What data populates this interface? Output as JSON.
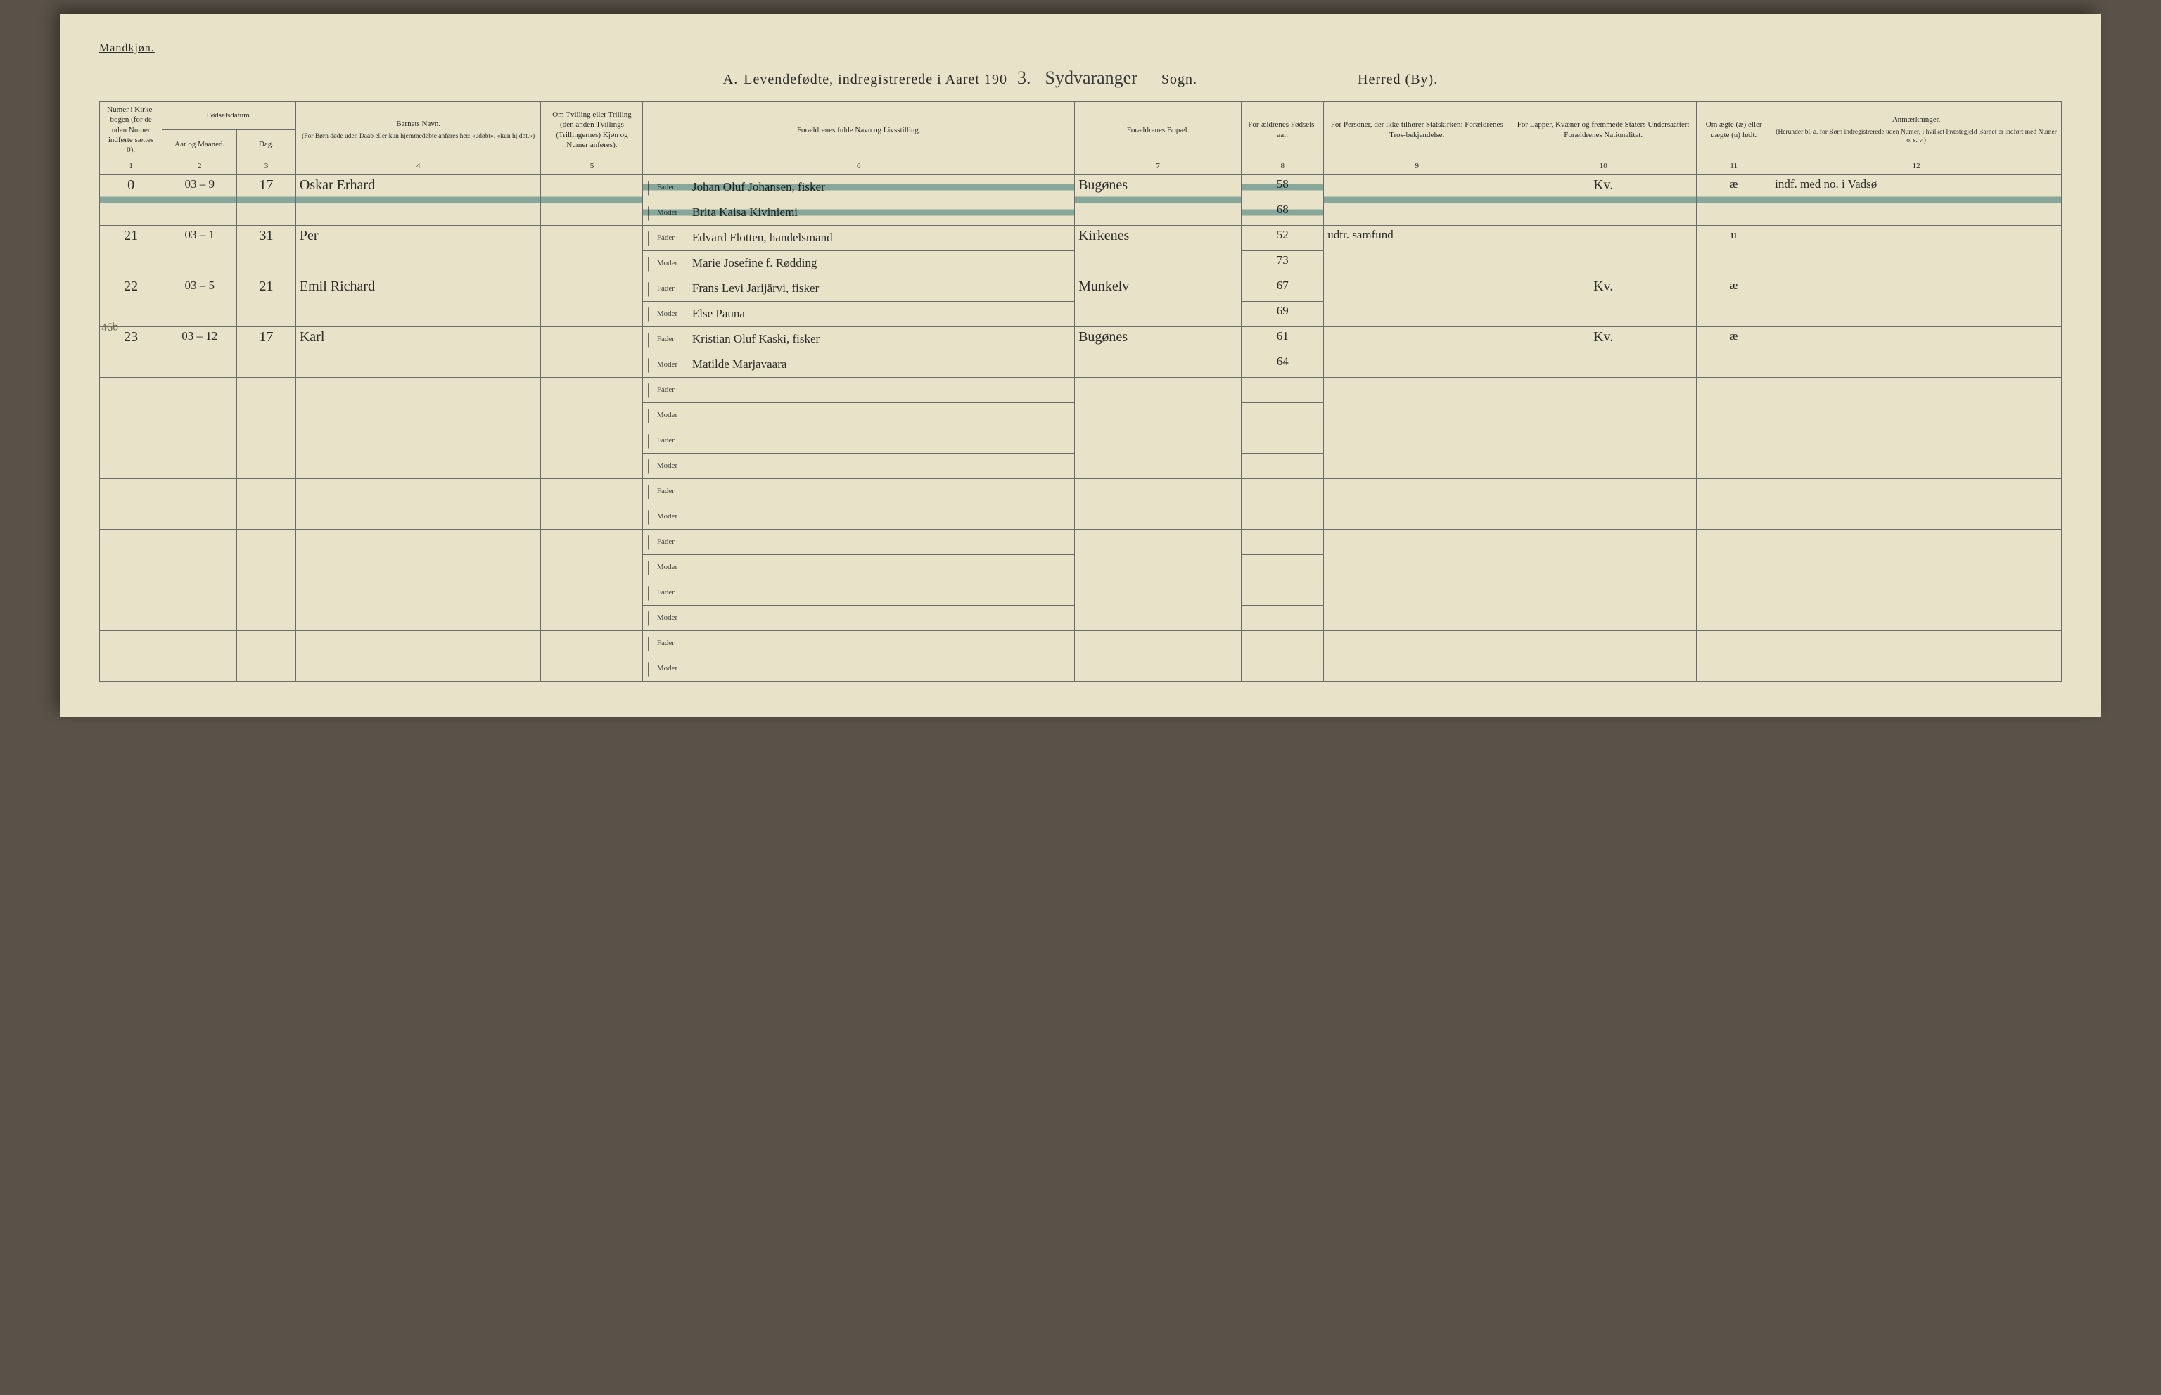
{
  "header": {
    "gender": "Mandkjøn.",
    "title_letter": "A.",
    "title_main": "Levendefødte, indregistrerede i Aaret 190",
    "year_suffix": "3.",
    "parish_hand": "Sydvaranger",
    "parish_label": "Sogn.",
    "district_label": "Herred (By)."
  },
  "columns": {
    "c1": "Numer i Kirke-bogen (for de uden Numer indførte sættes 0).",
    "c2_group": "Fødselsdatum.",
    "c2": "Aar og Maaned.",
    "c3": "Dag.",
    "c4": "Barnets Navn.",
    "c4_sub": "(For Børn døde uden Daab eller kun hjemmedøbte anføres her: «udøbt», «kun hj.dbt.»)",
    "c5": "Om Tvilling eller Trilling (den anden Tvillings (Trillingernes) Kjøn og Numer anføres).",
    "c6": "Forældrenes fulde Navn og Livsstilling.",
    "c7": "Forældrenes Bopæl.",
    "c8": "For-ældrenes Fødsels-aar.",
    "c9": "For Personer, der ikke tilhører Statskirken: Forældrenes Tros-bekjendelse.",
    "c10": "For Lapper, Kvæner og fremmede Staters Undersaatter: Forældrenes Nationalitet.",
    "c11": "Om ægte (æ) eller uægte (u) født.",
    "c12": "Anmærkninger.",
    "c12_sub": "(Herunder bl. a. for Børn indregistrerede uden Numer, i hvilket Præstegjeld Barnet er indført med Numer o. s. v.)"
  },
  "colnums": [
    "1",
    "2",
    "3",
    "4",
    "5",
    "6",
    "7",
    "8",
    "9",
    "10",
    "11",
    "12"
  ],
  "parent_labels": {
    "father": "Fader",
    "mother": "Moder"
  },
  "margin_note": "46b",
  "rows": [
    {
      "num": "0",
      "ym": "03 – 9",
      "day": "17",
      "child": "Oskar Erhard",
      "father": "Johan Oluf Johansen, fisker",
      "mother": "Brita Kaisa Kiviniemi",
      "residence": "Bugønes",
      "fy": "58",
      "my": "68",
      "faith": "",
      "nat": "Kv.",
      "leg": "æ",
      "note": "indf. med no. i Vadsø",
      "struck": true
    },
    {
      "num": "21",
      "ym": "03 – 1",
      "day": "31",
      "child": "Per",
      "father": "Edvard Flotten, handelsmand",
      "mother": "Marie Josefine f. Rødding",
      "residence": "Kirkenes",
      "fy": "52",
      "my": "73",
      "faith": "udtr. samfund",
      "nat": "",
      "leg": "u",
      "note": "",
      "struck": false
    },
    {
      "num": "22",
      "ym": "03 – 5",
      "day": "21",
      "child": "Emil Richard",
      "father": "Frans Levi Jarijärvi, fisker",
      "mother": "Else Pauna",
      "residence": "Munkelv",
      "fy": "67",
      "my": "69",
      "faith": "",
      "nat": "Kv.",
      "leg": "æ",
      "note": "",
      "struck": false
    },
    {
      "num": "23",
      "ym": "03 – 12",
      "day": "17",
      "child": "Karl",
      "father": "Kristian Oluf Kaski, fisker",
      "mother": "Matilde Marjavaara",
      "residence": "Bugønes",
      "fy": "61",
      "my": "64",
      "faith": "",
      "nat": "Kv.",
      "leg": "æ",
      "note": "",
      "struck": false
    }
  ],
  "empty_rows": 6
}
